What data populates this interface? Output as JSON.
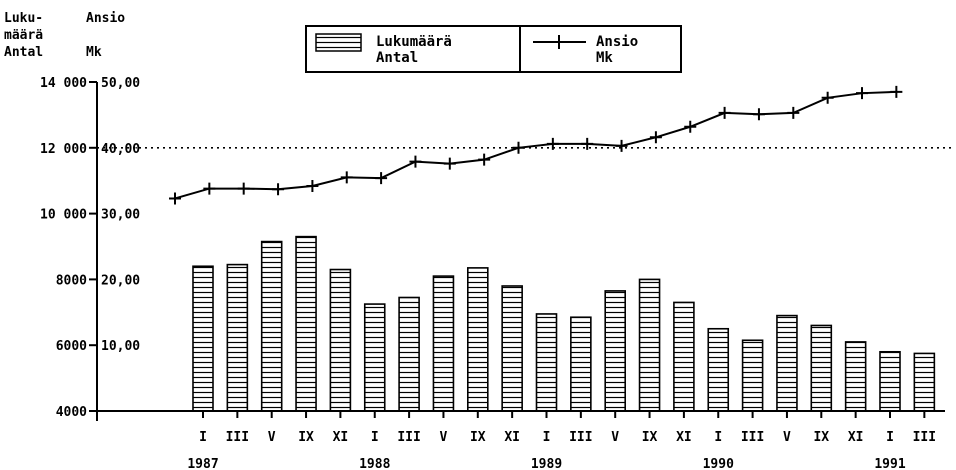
{
  "chart_data": {
    "type": "bar",
    "title": "",
    "left_axis_header": [
      "Luku-",
      "määrä",
      "Antal"
    ],
    "right_axis_header": [
      "Ansio",
      "",
      "Mk"
    ],
    "legend": {
      "placement": "top-center",
      "bar_label": [
        "Lukumäärä",
        "Antal"
      ],
      "line_label": [
        "Ansio",
        "Mk"
      ]
    },
    "ylim": [
      4000,
      14000
    ],
    "y_ticks": [
      "4000",
      "6000",
      "8000",
      "10 000",
      "12 000",
      "14 000"
    ],
    "y2lim": [
      0,
      50
    ],
    "y2_ticks": [
      "10,00",
      "20,00",
      "30,00",
      "40,00",
      "50,00"
    ],
    "reference_line_value": 12000,
    "categories": [
      "I",
      "III",
      "V",
      "IX",
      "XI",
      "I",
      "III",
      "V",
      "IX",
      "XI",
      "I",
      "III",
      "V",
      "IX",
      "XI",
      "I",
      "III",
      "V",
      "IX",
      "XI",
      "I",
      "III"
    ],
    "year_labels": [
      {
        "label": "1987",
        "index": 0
      },
      {
        "label": "1988",
        "index": 5
      },
      {
        "label": "1989",
        "index": 10
      },
      {
        "label": "1990",
        "index": 15
      },
      {
        "label": "1991",
        "index": 20
      }
    ],
    "series": [
      {
        "name": "Lukumäärä / Antal",
        "type": "bar",
        "axis": "left",
        "values": [
          8400,
          8450,
          9150,
          9300,
          8300,
          7250,
          7450,
          8100,
          8350,
          7800,
          6950,
          6850,
          7650,
          8000,
          7300,
          6500,
          6150,
          6900,
          6600,
          6100,
          5800,
          5750
        ]
      },
      {
        "name": "Ansio / Mk",
        "type": "line",
        "axis": "right",
        "values": [
          32.3,
          33.8,
          33.8,
          33.7,
          34.2,
          35.5,
          35.4,
          37.9,
          37.6,
          38.2,
          40.0,
          40.6,
          40.6,
          40.3,
          41.6,
          43.2,
          45.3,
          45.1,
          45.3,
          47.6,
          48.3,
          48.5
        ]
      }
    ]
  }
}
